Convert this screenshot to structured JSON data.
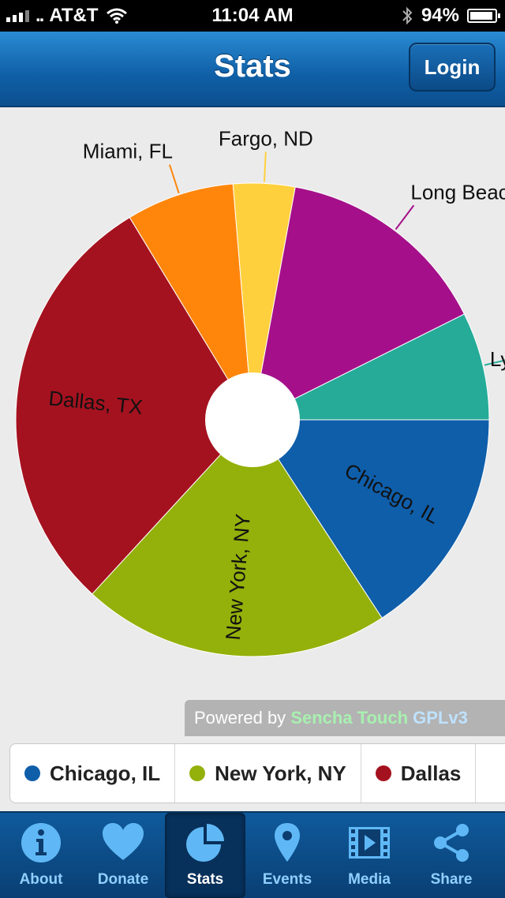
{
  "status_bar": {
    "carrier": "AT&T",
    "time": "11:04 AM",
    "battery": "94%",
    "battery_level": 0.94
  },
  "header": {
    "title": "Stats",
    "login_label": "Login"
  },
  "chart_data": {
    "type": "pie",
    "donut": true,
    "slices": [
      {
        "label": "Chicago, IL",
        "value": 15,
        "color": "#0f5eaa"
      },
      {
        "label": "New York, NY",
        "value": 20,
        "color": "#94b00a"
      },
      {
        "label": "Dallas, TX",
        "value": 28,
        "color": "#a5121f"
      },
      {
        "label": "Miami, FL",
        "value": 7,
        "color": "#ff860b"
      },
      {
        "label": "Fargo, ND",
        "value": 4,
        "color": "#ffd03d"
      },
      {
        "label": "Long Beach, NY",
        "value": 14,
        "color": "#a5108a"
      },
      {
        "label": "Lyn",
        "value": 7,
        "color": "#25ab98"
      }
    ]
  },
  "powered_by": {
    "prefix": "Powered by",
    "brand": "Sencha Touch",
    "license": "GPLv3"
  },
  "legend": [
    {
      "label": "Chicago, IL",
      "color": "#0f5eaa"
    },
    {
      "label": "New York, NY",
      "color": "#94b00a"
    },
    {
      "label": "Dallas",
      "color": "#a5121f"
    }
  ],
  "tabs": [
    {
      "label": "About",
      "icon": "info-icon"
    },
    {
      "label": "Donate",
      "icon": "heart-icon"
    },
    {
      "label": "Stats",
      "icon": "pie-chart-icon",
      "active": true
    },
    {
      "label": "Events",
      "icon": "location-pin-icon"
    },
    {
      "label": "Media",
      "icon": "film-icon"
    },
    {
      "label": "Share",
      "icon": "share-icon"
    }
  ]
}
